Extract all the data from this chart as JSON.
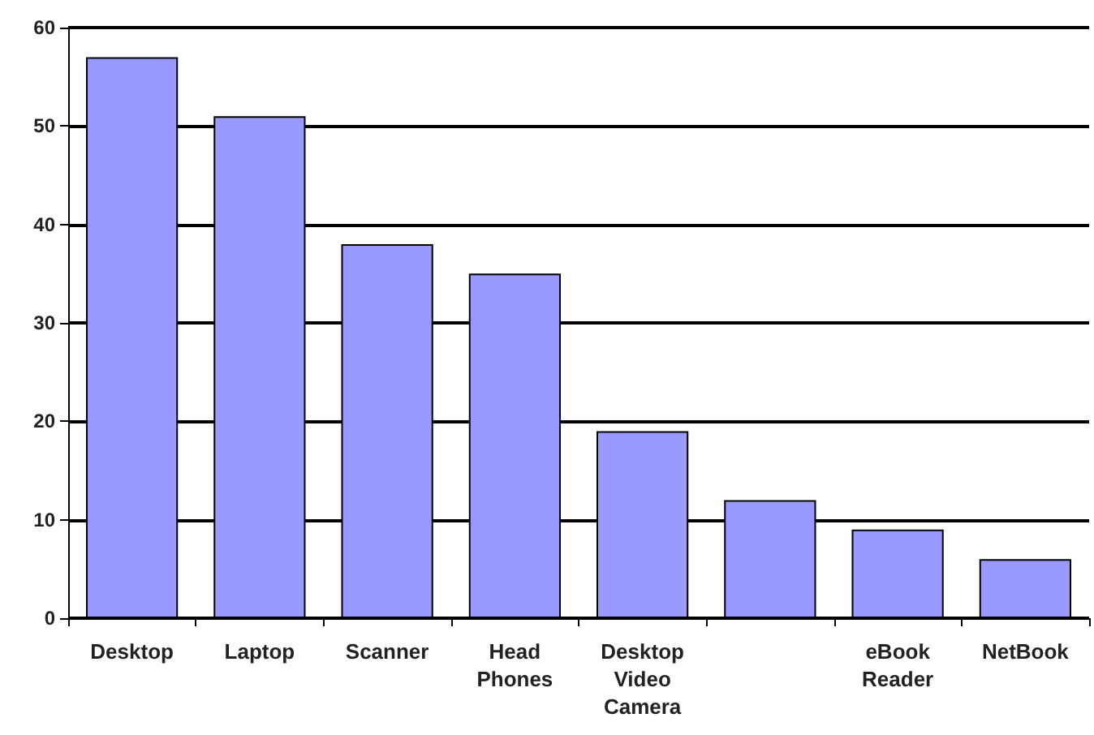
{
  "chart_data": {
    "type": "bar",
    "categories": [
      "Desktop",
      "Laptop",
      "Scanner",
      "Head\nPhones",
      "Desktop\nVideo\nCamera",
      null,
      "eBook\nReader",
      "NetBook"
    ],
    "values": [
      57,
      51,
      38,
      35,
      19,
      12,
      9,
      6
    ],
    "color": "#9999ff",
    "ylim": [
      0,
      60
    ],
    "yticks": [
      0,
      10,
      20,
      30,
      40,
      50,
      60
    ],
    "grid": "y"
  }
}
